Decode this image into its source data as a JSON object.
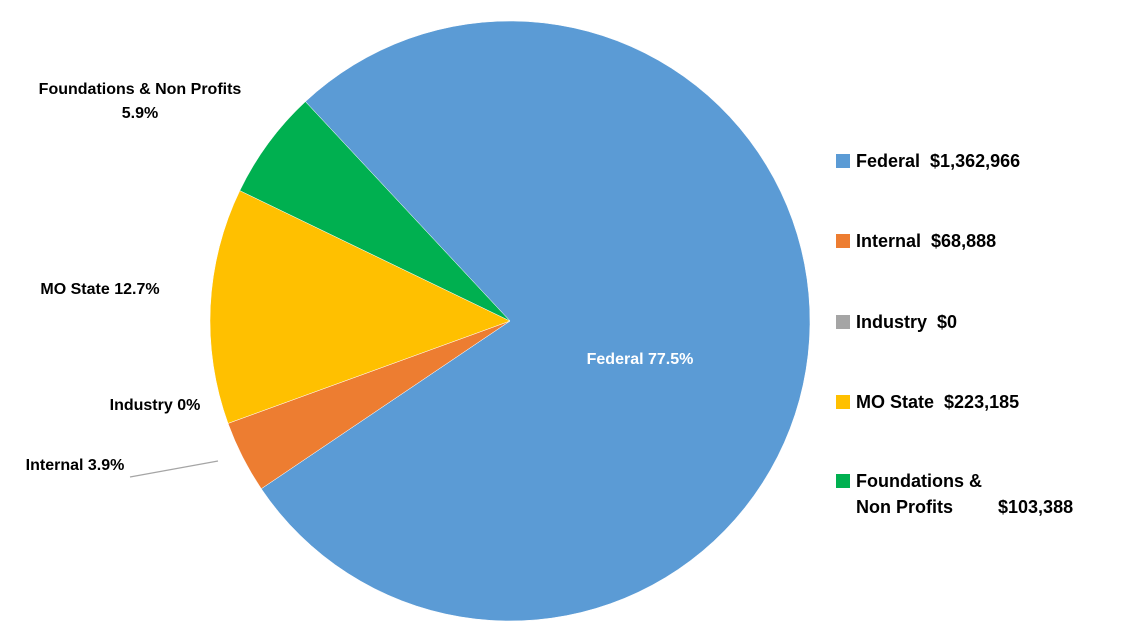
{
  "chart_data": {
    "type": "pie",
    "categories": [
      "Federal",
      "Internal",
      "Industry",
      "MO State",
      "Foundations & Non Profits"
    ],
    "values": [
      77.5,
      3.9,
      0,
      12.7,
      5.9
    ],
    "value_labels": [
      "77.5%",
      "3.9%",
      "0%",
      "12.7%",
      "5.9%"
    ],
    "amounts": [
      1362966,
      68888,
      0,
      223185,
      103388
    ],
    "amount_labels": [
      "$1,362,966",
      "$68,888",
      "$0",
      "$223,185",
      "$103,388"
    ],
    "colors": [
      "#5b9bd5",
      "#ed7d31",
      "#a5a5a5",
      "#ffc000",
      "#00b050"
    ],
    "legend": "right"
  }
}
